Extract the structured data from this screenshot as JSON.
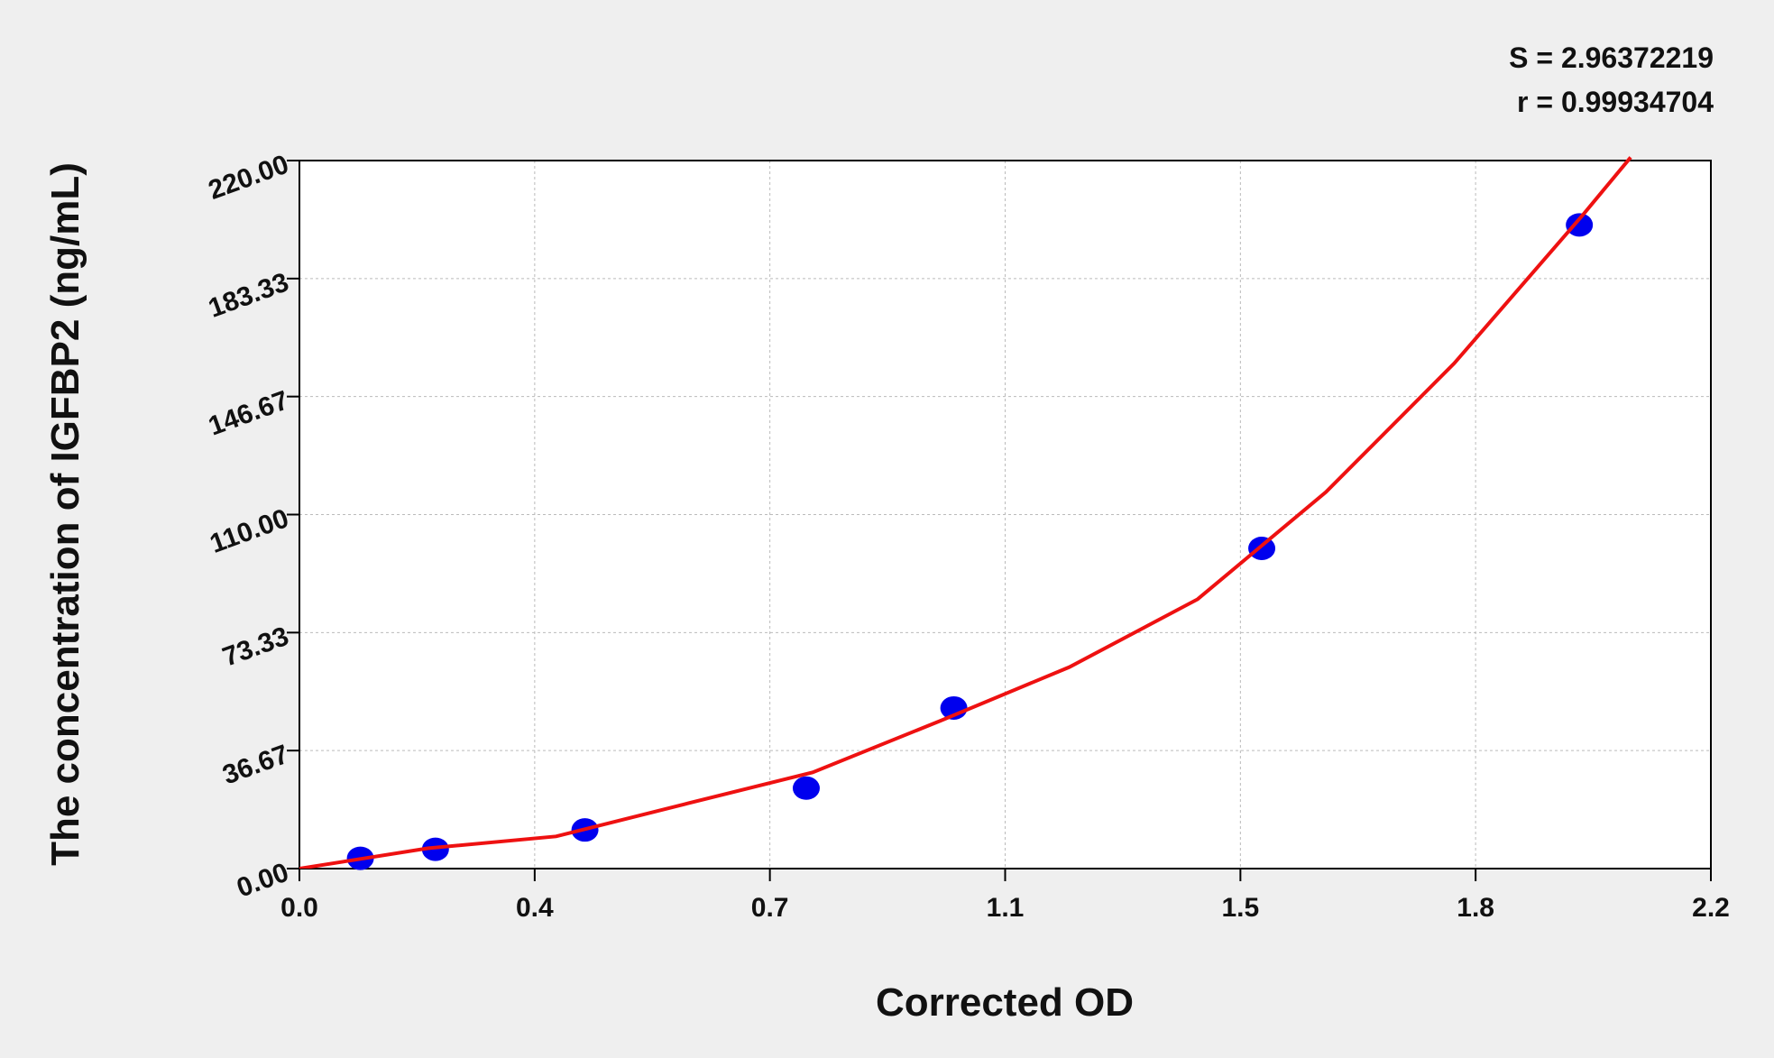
{
  "chart_data": {
    "type": "scatter",
    "annotations": [
      "S = 2.96372219",
      "r = 0.99934704"
    ],
    "x_label": "Corrected OD",
    "y_label": "The concentration of IGFBP2 (ng/mL)",
    "xlim": [
      0,
      2.2
    ],
    "ylim": [
      0,
      220
    ],
    "xticks": [
      {
        "value": 0,
        "label": "0.0"
      },
      {
        "value": 0.3667,
        "label": "0.4"
      },
      {
        "value": 0.7333,
        "label": "0.7"
      },
      {
        "value": 1.1,
        "label": "1.1"
      },
      {
        "value": 1.4667,
        "label": "1.5"
      },
      {
        "value": 1.8333,
        "label": "1.8"
      },
      {
        "value": 2.2,
        "label": "2.2"
      }
    ],
    "yticks": [
      {
        "value": 0,
        "label": "0.00"
      },
      36.67,
      73.33,
      {
        "value": 110,
        "label": "110.00"
      },
      146.67,
      183.33,
      {
        "value": 220,
        "label": "220.00"
      }
    ],
    "grid": true,
    "series": [
      {
        "type": "scatter",
        "color": "#0000ee",
        "x": [
          0.095,
          0.212,
          0.445,
          0.79,
          1.02,
          1.5,
          1.995
        ],
        "values": [
          3.2,
          6.0,
          12.0,
          25.0,
          49.9,
          99.5,
          200.0
        ]
      },
      {
        "type": "line",
        "color": "#ee1111",
        "x": [
          0,
          0.2,
          0.4,
          0.6,
          0.8,
          1.0,
          1.2,
          1.4,
          1.6,
          1.8,
          2.0,
          2.075
        ],
        "values": [
          0,
          6.3,
          10,
          20,
          29.9,
          46,
          62.6,
          83.7,
          117,
          157,
          203,
          221
        ]
      }
    ]
  }
}
